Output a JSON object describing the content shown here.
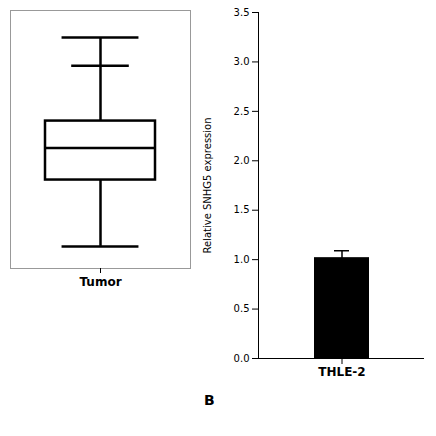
{
  "chart_data": [
    {
      "type": "box",
      "categories": [
        "Tumor"
      ],
      "whisker_low": [
        0.08
      ],
      "q1": [
        0.62
      ],
      "median": [
        0.88
      ],
      "q3": [
        1.1
      ],
      "whisker_high": [
        1.55
      ],
      "whisker_high2": [
        1.78
      ],
      "color": "black",
      "ylim": [
        -0.1,
        2.0
      ],
      "tick_labels": "x"
    },
    {
      "type": "bar",
      "categories": [
        "THLE-2"
      ],
      "values": [
        1.02
      ],
      "errors": [
        0.07
      ],
      "color": "#000000",
      "ylabel": "Relative SNHG5 expression",
      "ylim": [
        0,
        3.5
      ],
      "yticks": [
        {
          "value": 0.0,
          "label": "0.0"
        },
        0.5,
        {
          "value": 1.0,
          "label": "1.0"
        },
        1.5,
        {
          "value": 2.0,
          "label": "2.0"
        },
        2.5,
        {
          "value": 3.0,
          "label": "3.0"
        },
        3.5
      ],
      "annotation": "B"
    }
  ]
}
